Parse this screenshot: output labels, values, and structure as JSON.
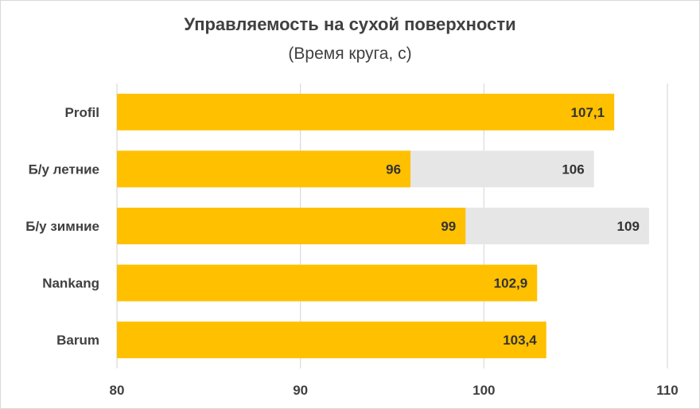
{
  "chart_data": {
    "type": "bar",
    "orientation": "horizontal",
    "title": "Управляемость на сухой поверхности",
    "subtitle": "(Время круга, с)",
    "categories": [
      "Profil",
      "Б/у летние",
      "Б/у зимние",
      "Nankang",
      "Barum"
    ],
    "series": [
      {
        "values": [
          107.1,
          96,
          99,
          102.9,
          103.4
        ],
        "labels": [
          "107,1",
          "96",
          "99",
          "102,9",
          "103,4"
        ],
        "color": "#FFC000"
      },
      {
        "values": [
          null,
          106,
          109,
          null,
          null
        ],
        "labels": [
          "",
          "106",
          "109",
          "",
          ""
        ],
        "color": "#E7E6E6"
      }
    ],
    "xlim": [
      80,
      110
    ],
    "xticks": [
      80,
      90,
      100,
      110
    ],
    "xtick_labels": [
      "80",
      "90",
      "100",
      "110"
    ],
    "grid": "vertical",
    "grid_color": "#d9d9d9",
    "legend": "none"
  }
}
